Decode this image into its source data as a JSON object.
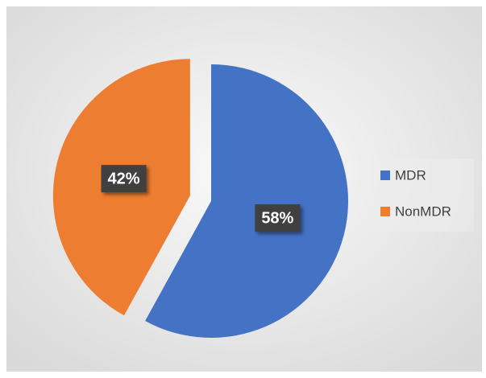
{
  "chart_data": {
    "type": "pie",
    "categories": [
      "MDR",
      "NonMDR"
    ],
    "values": [
      58,
      42
    ],
    "value_labels": [
      "58%",
      "42%"
    ],
    "colors": [
      "#4472c4",
      "#ed7d31"
    ],
    "legend": "right"
  }
}
